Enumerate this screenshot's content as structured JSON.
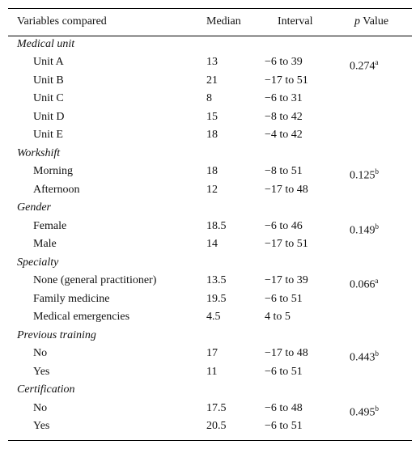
{
  "table": {
    "header": [
      "Variables compared",
      "Median",
      "Interval",
      {
        "italic": "p",
        "text": "Value"
      }
    ],
    "groups": [
      {
        "title": "Medical unit",
        "rows": [
          [
            "Unit A",
            13,
            "−6 to 39",
            {
              "value": 0.274,
              "note": "a"
            }
          ],
          [
            "Unit B",
            21,
            "−17 to 51"
          ],
          [
            "Unit C",
            8,
            "−6 to 31"
          ],
          [
            "Unit D",
            15,
            "−8 to 42"
          ],
          [
            "Unit E",
            18,
            "−4 to 42"
          ]
        ]
      },
      {
        "title": "Workshift",
        "rows": [
          [
            "Morning",
            18,
            "−8 to 51",
            {
              "value": 0.125,
              "note": "b"
            }
          ],
          [
            "Afternoon",
            12,
            "−17 to 48"
          ]
        ]
      },
      {
        "title": "Gender",
        "rows": [
          [
            "Female",
            18.5,
            "−6 to 46",
            {
              "value": 0.149,
              "note": "b"
            }
          ],
          [
            "Male",
            14,
            "−17 to 51"
          ]
        ]
      },
      {
        "title": "Specialty",
        "rows": [
          [
            "None (general practitioner)",
            13.5,
            "−17 to 39",
            {
              "value": 0.066,
              "note": "a"
            }
          ],
          [
            "Family medicine",
            19.5,
            "−6 to 51"
          ],
          [
            "Medical emergencies",
            4.5,
            "4 to 5"
          ]
        ]
      },
      {
        "title": "Previous training",
        "rows": [
          [
            "No",
            17,
            "−17 to 48",
            {
              "value": 0.443,
              "note": "b"
            }
          ],
          [
            "Yes",
            11,
            "−6 to 51"
          ]
        ]
      },
      {
        "title": "Certification",
        "rows": [
          [
            "No",
            17.5,
            "−6 to 48",
            {
              "value": 0.495,
              "note": "b"
            }
          ],
          [
            "Yes",
            20.5,
            "−6 to 51"
          ]
        ]
      }
    ]
  }
}
